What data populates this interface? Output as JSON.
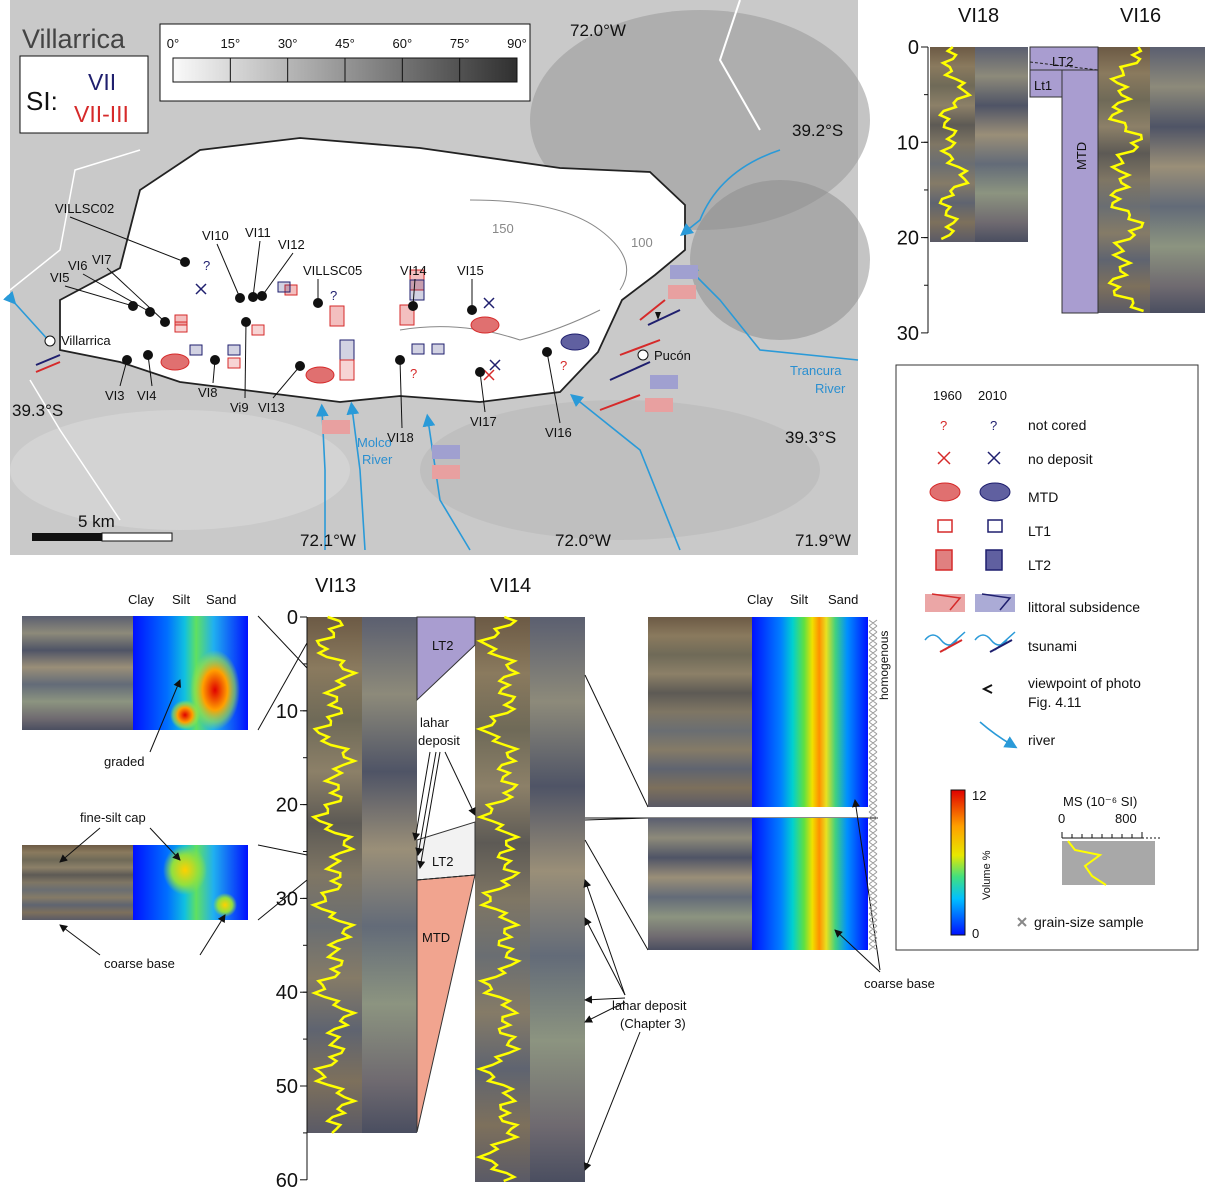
{
  "map": {
    "title": "Villarrica",
    "slope_ticks": [
      "0°",
      "15°",
      "30°",
      "45°",
      "60°",
      "75°",
      "90°"
    ],
    "si_label": "SI:",
    "si_values": [
      "VII",
      "VII-III"
    ],
    "coords": {
      "top": "72.0°W",
      "right_upper": "39.2°S",
      "left": "39.3°S",
      "right_lower": "39.3°S",
      "bottom": [
        "72.1°W",
        "72.0°W",
        "71.9°W"
      ]
    },
    "sites": [
      "VILLSC02",
      "VI10",
      "VI11",
      "VI12",
      "VILLSC05",
      "VI14",
      "VI15",
      "VI5",
      "VI6",
      "VI7",
      "VI3",
      "VI4",
      "VI8",
      "Vi9",
      "VI13",
      "VI18",
      "VI17",
      "VI16"
    ],
    "towns": [
      "Villarrica",
      "Pucón"
    ],
    "rivers": {
      "trancura": [
        "Trancura",
        "River"
      ],
      "molco": [
        "Molco",
        "River"
      ]
    },
    "contours": [
      "150",
      "100"
    ],
    "not_cored_mark": "?",
    "scale": "5 km"
  },
  "cores_top": {
    "cores": [
      "VI18",
      "VI16"
    ],
    "depth_ticks": [
      0,
      10,
      20,
      30
    ],
    "units": [
      "LT2",
      "Lt1",
      "MTD"
    ]
  },
  "legend": {
    "years": [
      "1960",
      "2010"
    ],
    "items": [
      "not cored",
      "no deposit",
      "MTD",
      "LT1",
      "LT2",
      "littoral subsidence",
      "tsunami",
      [
        "viewpoint of photo",
        "Fig. 4.11"
      ],
      "river"
    ],
    "colorbar": {
      "max": 12,
      "min": 0,
      "label": "Volume %"
    },
    "ms": {
      "label": "MS (10⁻⁶ SI)",
      "ticks": [
        0,
        800
      ]
    },
    "sample": "grain-size sample"
  },
  "cores_bottom": {
    "cores": [
      "VI13",
      "VI14"
    ],
    "depth_ticks": [
      0,
      10,
      20,
      30,
      40,
      50,
      60
    ],
    "units": [
      "LT2",
      "LT2",
      "MTD"
    ],
    "lahar": [
      "lahar",
      "deposit"
    ],
    "lahar_ch3": [
      "lahar deposit",
      "(Chapter 3)"
    ],
    "grain_axis": [
      "Clay",
      "Silt",
      "Sand"
    ],
    "insets": {
      "graded": "graded",
      "cap": "fine-silt cap",
      "coarse": "coarse base",
      "homogenous": "homogenous"
    }
  }
}
